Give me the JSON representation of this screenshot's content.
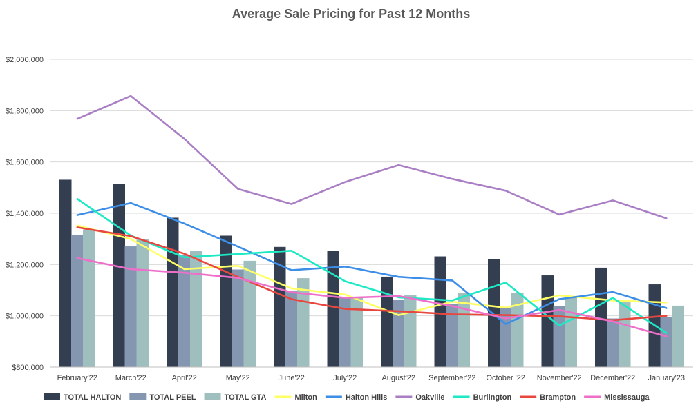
{
  "chart_data": {
    "type": "bar",
    "title": "Average Sale Pricing for Past 12 Months",
    "xlabel": "",
    "ylabel": "",
    "ylim": [
      800000,
      2000000
    ],
    "yticks": [
      800000,
      1000000,
      1200000,
      1400000,
      1600000,
      1800000,
      2000000
    ],
    "ytick_labels": [
      "$800,000",
      "$1,000,000",
      "$1,200,000",
      "$1,400,000",
      "$1,600,000",
      "$1,800,000",
      "$2,000,000"
    ],
    "grid": true,
    "legend_position": "bottom",
    "categories": [
      "February'22",
      "March'22",
      "April'22",
      "May'22",
      "June'22",
      "July'22",
      "August'22",
      "September'22",
      "October '22",
      "November'22",
      "December'22",
      "January'23"
    ],
    "bar_series": [
      {
        "name": "TOTAL HALTON",
        "color": "#333f50",
        "values": [
          1530000,
          1515000,
          1382000,
          1312000,
          1268000,
          1253000,
          1152000,
          1231000,
          1220000,
          1157000,
          1187000,
          1122000
        ]
      },
      {
        "name": "TOTAL PEEL",
        "color": "#8496b0",
        "values": [
          1316000,
          1270000,
          1235000,
          1180000,
          1095000,
          1071000,
          1063000,
          1045000,
          1031000,
          1038000,
          989000,
          993000
        ]
      },
      {
        "name": "TOTAL GTA",
        "color": "#9ebfbe",
        "values": [
          1336000,
          1299000,
          1254000,
          1214000,
          1146000,
          1073000,
          1079000,
          1087000,
          1089000,
          1075000,
          1052000,
          1039000
        ]
      }
    ],
    "line_series": [
      {
        "name": "Milton",
        "color": "#ffff66",
        "values": [
          1352000,
          1300000,
          1182000,
          1195000,
          1107000,
          1083000,
          1003000,
          1055000,
          1032000,
          1080000,
          1060000,
          1052000
        ]
      },
      {
        "name": "Halton Hills",
        "color": "#3d8ee6",
        "values": [
          1393000,
          1440000,
          1360000,
          1270000,
          1178000,
          1192000,
          1152000,
          1138000,
          968000,
          1065000,
          1093000,
          1030000
        ]
      },
      {
        "name": "Oakville",
        "color": "#a97ec4",
        "values": [
          1768000,
          1857000,
          1690000,
          1495000,
          1436000,
          1522000,
          1588000,
          1534000,
          1488000,
          1395000,
          1450000,
          1380000
        ]
      },
      {
        "name": "Burlington",
        "color": "#1de9c5",
        "values": [
          1456000,
          1313000,
          1228000,
          1241000,
          1254000,
          1135000,
          1072000,
          1060000,
          1130000,
          962000,
          1070000,
          933000
        ]
      },
      {
        "name": "Brampton",
        "color": "#e8473f",
        "values": [
          1345000,
          1311000,
          1242000,
          1152000,
          1065000,
          1027000,
          1018000,
          1006000,
          1003000,
          998000,
          983000,
          1000000
        ]
      },
      {
        "name": "Mississauga",
        "color": "#ee6fca",
        "values": [
          1225000,
          1182000,
          1168000,
          1148000,
          1092000,
          1070000,
          1077000,
          1038000,
          990000,
          1023000,
          978000,
          920000
        ]
      }
    ]
  }
}
